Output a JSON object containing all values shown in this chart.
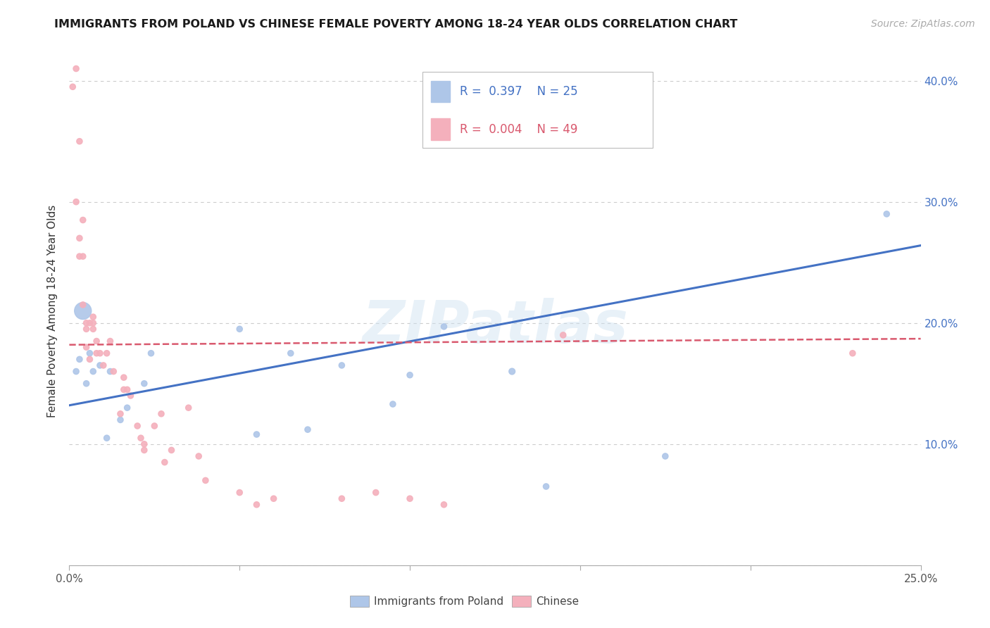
{
  "title": "IMMIGRANTS FROM POLAND VS CHINESE FEMALE POVERTY AMONG 18-24 YEAR OLDS CORRELATION CHART",
  "source": "Source: ZipAtlas.com",
  "ylabel": "Female Poverty Among 18-24 Year Olds",
  "xlim": [
    0.0,
    0.25
  ],
  "ylim": [
    0.0,
    0.42
  ],
  "x_ticks": [
    0.0,
    0.05,
    0.1,
    0.15,
    0.2,
    0.25
  ],
  "y_ticks": [
    0.0,
    0.1,
    0.2,
    0.3,
    0.4
  ],
  "y_tick_labels_right": [
    "",
    "10.0%",
    "20.0%",
    "30.0%",
    "40.0%"
  ],
  "x_tick_labels": [
    "0.0%",
    "",
    "",
    "",
    "",
    "25.0%"
  ],
  "legend_poland_label": "Immigrants from Poland",
  "legend_chinese_label": "Chinese",
  "poland_R": "0.397",
  "poland_N": "25",
  "chinese_R": "0.004",
  "chinese_N": "49",
  "poland_color": "#aec6e8",
  "chinese_color": "#f4b0bc",
  "poland_line_color": "#4472c4",
  "chinese_line_color": "#d9596e",
  "watermark": "ZIPatlas",
  "poland_scatter_x": [
    0.002,
    0.003,
    0.004,
    0.005,
    0.006,
    0.007,
    0.009,
    0.011,
    0.012,
    0.015,
    0.017,
    0.022,
    0.024,
    0.05,
    0.055,
    0.065,
    0.07,
    0.08,
    0.095,
    0.1,
    0.11,
    0.13,
    0.14,
    0.175,
    0.24
  ],
  "poland_scatter_y": [
    0.16,
    0.17,
    0.21,
    0.15,
    0.175,
    0.16,
    0.165,
    0.105,
    0.16,
    0.12,
    0.13,
    0.15,
    0.175,
    0.195,
    0.108,
    0.175,
    0.112,
    0.165,
    0.133,
    0.157,
    0.197,
    0.16,
    0.065,
    0.09,
    0.29
  ],
  "poland_scatter_sizes": [
    35,
    35,
    300,
    35,
    35,
    35,
    35,
    35,
    35,
    35,
    35,
    35,
    35,
    35,
    35,
    35,
    35,
    35,
    35,
    35,
    35,
    40,
    35,
    35,
    35
  ],
  "china_scatter_x": [
    0.001,
    0.002,
    0.002,
    0.003,
    0.003,
    0.003,
    0.004,
    0.004,
    0.004,
    0.005,
    0.005,
    0.005,
    0.006,
    0.006,
    0.007,
    0.007,
    0.007,
    0.008,
    0.008,
    0.009,
    0.01,
    0.011,
    0.012,
    0.013,
    0.015,
    0.016,
    0.016,
    0.017,
    0.018,
    0.02,
    0.021,
    0.022,
    0.022,
    0.025,
    0.027,
    0.028,
    0.03,
    0.035,
    0.038,
    0.04,
    0.05,
    0.055,
    0.06,
    0.08,
    0.09,
    0.1,
    0.11,
    0.145,
    0.23
  ],
  "china_scatter_y": [
    0.395,
    0.41,
    0.3,
    0.35,
    0.27,
    0.255,
    0.285,
    0.255,
    0.215,
    0.2,
    0.195,
    0.18,
    0.2,
    0.17,
    0.205,
    0.2,
    0.195,
    0.185,
    0.175,
    0.175,
    0.165,
    0.175,
    0.185,
    0.16,
    0.125,
    0.155,
    0.145,
    0.145,
    0.14,
    0.115,
    0.105,
    0.1,
    0.095,
    0.115,
    0.125,
    0.085,
    0.095,
    0.13,
    0.09,
    0.07,
    0.06,
    0.05,
    0.055,
    0.055,
    0.06,
    0.055,
    0.05,
    0.19,
    0.175
  ],
  "china_scatter_sizes": [
    35,
    35,
    35,
    35,
    35,
    35,
    35,
    35,
    35,
    35,
    35,
    35,
    35,
    35,
    35,
    35,
    35,
    35,
    35,
    35,
    35,
    35,
    35,
    35,
    35,
    35,
    35,
    35,
    35,
    35,
    35,
    35,
    35,
    35,
    35,
    35,
    35,
    35,
    35,
    35,
    35,
    35,
    35,
    35,
    35,
    35,
    35,
    35,
    35
  ],
  "poland_trend_x": [
    0.0,
    0.25
  ],
  "poland_trend_y": [
    0.132,
    0.264
  ],
  "chinese_trend_x": [
    0.0,
    0.25
  ],
  "chinese_trend_y": [
    0.182,
    0.187
  ]
}
